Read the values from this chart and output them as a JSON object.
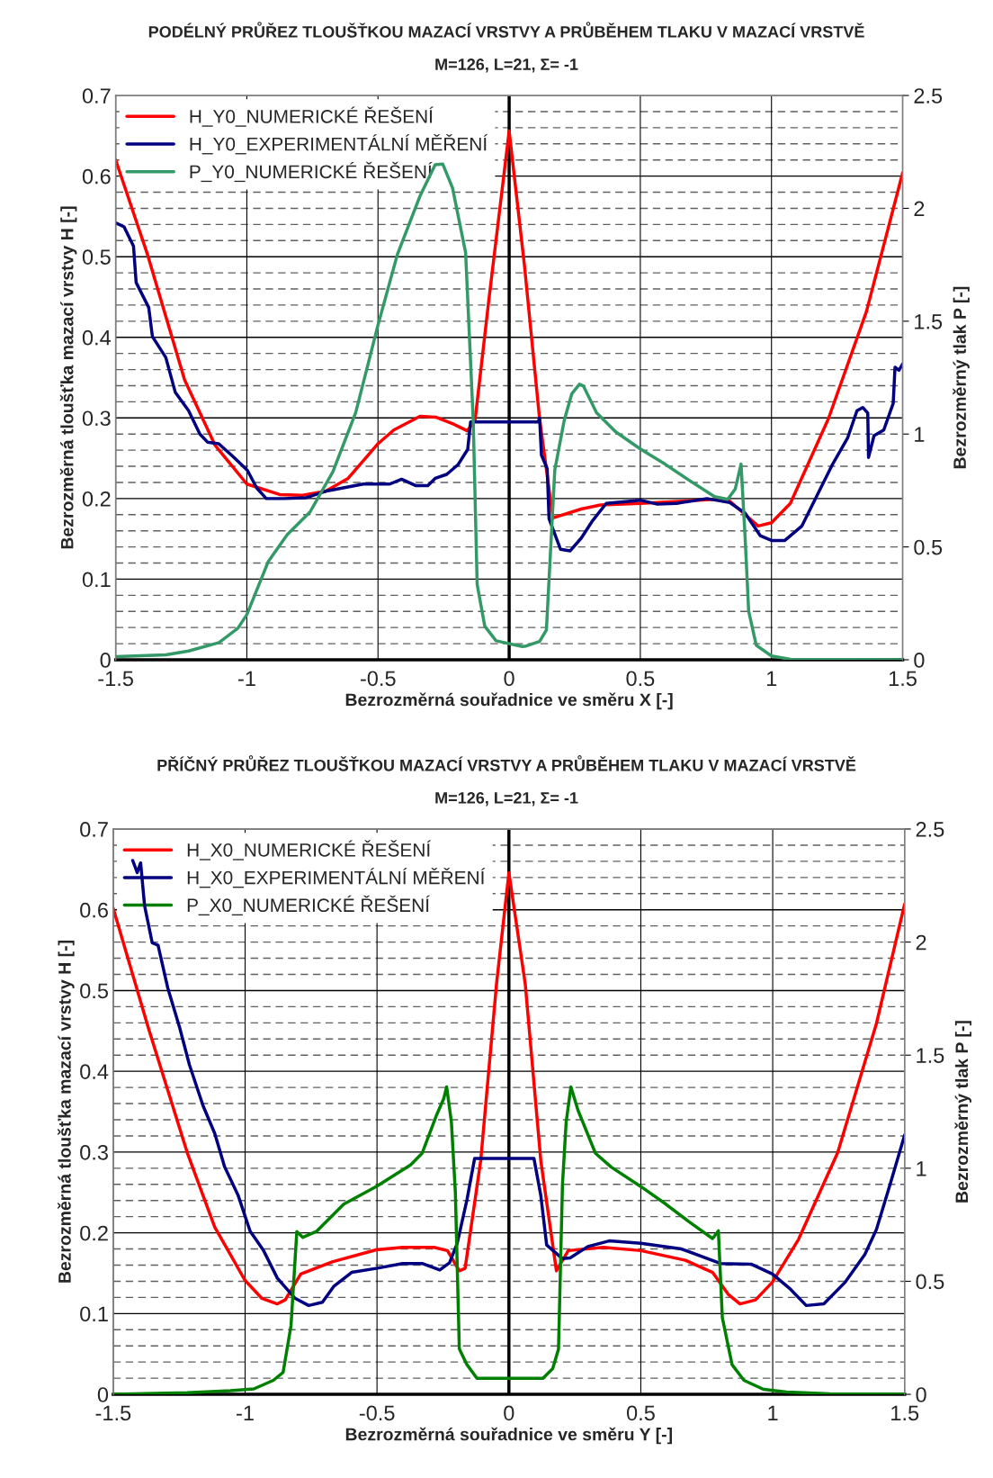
{
  "chart_data": [
    {
      "type": "line",
      "title": "PODÉLNÝ PRŮŘEZ TLOUŠŤKOU MAZACÍ VRSTVY A PRŮBĚHEM TLAKU V MAZACÍ VRSTVĚ",
      "subtitle": "M=126, L=21, Σ= -1",
      "xlabel": "Bezrozměrná souřadnice ve směru X [-]",
      "ylabel": "Bezrozměrná tloušťka mazací vrstvy H [-]",
      "y2label": "Bezrozměrný tlak P [-]",
      "xlim": [
        -1.5,
        1.5
      ],
      "xticks": [
        -1.5,
        -1,
        -0.5,
        0,
        0.5,
        1,
        1.5
      ],
      "ylim": [
        0,
        0.7
      ],
      "yticks": [
        0,
        {
          "value": 0.02,
          "label": null
        },
        {
          "value": 0.04,
          "label": null
        },
        {
          "value": 0.06,
          "label": null
        },
        {
          "value": 0.08,
          "label": null
        },
        0.1,
        {
          "value": 0.12,
          "label": null
        },
        {
          "value": 0.14,
          "label": null
        },
        {
          "value": 0.16,
          "label": null
        },
        {
          "value": 0.18,
          "label": null
        },
        0.2,
        {
          "value": 0.22,
          "label": null
        },
        {
          "value": 0.24,
          "label": null
        },
        {
          "value": 0.26,
          "label": null
        },
        {
          "value": 0.28,
          "label": null
        },
        0.3,
        {
          "value": 0.32,
          "label": null
        },
        {
          "value": 0.34,
          "label": null
        },
        {
          "value": 0.36,
          "label": null
        },
        {
          "value": 0.38,
          "label": null
        },
        0.4,
        {
          "value": 0.42,
          "label": null
        },
        {
          "value": 0.44,
          "label": null
        },
        {
          "value": 0.46,
          "label": null
        },
        {
          "value": 0.48,
          "label": null
        },
        0.5,
        {
          "value": 0.52,
          "label": null
        },
        {
          "value": 0.54,
          "label": null
        },
        {
          "value": 0.56,
          "label": null
        },
        {
          "value": 0.58,
          "label": null
        },
        0.6,
        {
          "value": 0.62,
          "label": null
        },
        {
          "value": 0.64,
          "label": null
        },
        {
          "value": 0.66,
          "label": null
        },
        {
          "value": 0.68,
          "label": null
        },
        0.7
      ],
      "y2lim": [
        0,
        2.5
      ],
      "y2ticks": [
        0,
        0.5,
        1,
        1.5,
        2,
        2.5
      ],
      "grid": true,
      "legend": "top left",
      "marker": "none",
      "line_style": "solid",
      "ref_lines": [
        {
          "axis": "x",
          "value": 0,
          "color": "#000000"
        }
      ],
      "series": [
        {
          "name": "H_Y0_NUMERICKÉ ŘEŠENÍ",
          "color": "#ff0000",
          "x": [
            -1.5,
            -1.38,
            -1.237,
            -1.121,
            -1.0,
            -0.875,
            -0.788,
            -0.7,
            -0.614,
            -0.5,
            -0.44,
            -0.34,
            -0.28,
            -0.21,
            -0.16,
            -0.13,
            -0.079,
            0,
            0.058,
            0.116,
            0.167,
            0.275,
            0.348,
            0.5,
            0.783,
            0.84,
            0.9,
            0.949,
            1.0,
            1.072,
            1.217,
            1.362,
            1.5
          ],
          "values": [
            0.62,
            0.504,
            0.347,
            0.266,
            0.218,
            0.205,
            0.204,
            0.209,
            0.225,
            0.268,
            0.285,
            0.302,
            0.301,
            0.292,
            0.284,
            0.297,
            0.442,
            0.656,
            0.49,
            0.299,
            0.176,
            0.187,
            0.192,
            0.194,
            0.199,
            0.197,
            0.18,
            0.166,
            0.17,
            0.194,
            0.299,
            0.432,
            0.604
          ]
        },
        {
          "name": "H_Y0_EXPERIMENTÁLNÍ MĚŘENÍ",
          "color": "#000080",
          "x": [
            -1.5,
            -1.468,
            -1.432,
            -1.422,
            -1.374,
            -1.36,
            -1.309,
            -1.273,
            -1.222,
            -1.179,
            -1.15,
            -1.107,
            -1.049,
            -0.998,
            -0.962,
            -0.926,
            -0.86,
            -0.774,
            -0.7,
            -0.556,
            -0.455,
            -0.41,
            -0.355,
            -0.31,
            -0.282,
            -0.238,
            -0.195,
            -0.158,
            -0.147,
            0.11,
            0.116,
            0.123,
            0.145,
            0.152,
            0.196,
            0.232,
            0.275,
            0.319,
            0.37,
            0.5,
            0.565,
            0.638,
            0.754,
            0.841,
            0.899,
            0.957,
            1.0,
            1.051,
            1.116,
            1.174,
            1.232,
            1.29,
            1.326,
            1.348,
            1.367,
            1.37,
            1.391,
            1.428,
            1.464,
            1.471,
            1.486,
            1.5
          ],
          "values": [
            0.542,
            0.537,
            0.513,
            0.468,
            0.437,
            0.401,
            0.375,
            0.332,
            0.309,
            0.28,
            0.27,
            0.268,
            0.251,
            0.235,
            0.213,
            0.2,
            0.2,
            0.201,
            0.209,
            0.218,
            0.218,
            0.224,
            0.216,
            0.216,
            0.225,
            0.23,
            0.242,
            0.261,
            0.295,
            0.295,
            0.3,
            0.254,
            0.237,
            0.175,
            0.137,
            0.135,
            0.151,
            0.173,
            0.194,
            0.198,
            0.193,
            0.194,
            0.2,
            0.195,
            0.182,
            0.154,
            0.148,
            0.148,
            0.166,
            0.204,
            0.242,
            0.275,
            0.309,
            0.313,
            0.306,
            0.251,
            0.278,
            0.285,
            0.318,
            0.363,
            0.359,
            0.367
          ]
        },
        {
          "name": "P_Y0_NUMERICKÉ ŘEŠENÍ",
          "color": "#339966",
          "axis": "y2",
          "x": [
            -1.5,
            -1.309,
            -1.222,
            -1.106,
            -1.034,
            -1.0,
            -0.918,
            -0.846,
            -0.759,
            -0.672,
            -0.585,
            -0.5,
            -0.426,
            -0.339,
            -0.282,
            -0.253,
            -0.216,
            -0.166,
            -0.137,
            -0.122,
            -0.093,
            -0.05,
            0.05,
            0.065,
            0.116,
            0.142,
            0.174,
            0.21,
            0.239,
            0.268,
            0.283,
            0.333,
            0.406,
            0.5,
            0.594,
            0.681,
            0.783,
            0.833,
            0.862,
            0.884,
            0.899,
            0.913,
            0.942,
            1.0,
            1.072,
            1.5
          ],
          "values": [
            0.014,
            0.022,
            0.039,
            0.076,
            0.14,
            0.2,
            0.436,
            0.554,
            0.655,
            0.833,
            1.095,
            1.483,
            1.796,
            2.057,
            2.193,
            2.196,
            2.091,
            1.804,
            1.061,
            0.334,
            0.149,
            0.084,
            0.059,
            0.061,
            0.081,
            0.132,
            0.841,
            1.061,
            1.179,
            1.221,
            1.213,
            1.095,
            1.01,
            0.934,
            0.867,
            0.799,
            0.723,
            0.711,
            0.757,
            0.867,
            0.554,
            0.216,
            0.064,
            0.017,
            0.002,
            0
          ]
        }
      ]
    },
    {
      "type": "line",
      "title": "PŘÍČNÝ PRŮŘEZ TLOUŠŤKOU MAZACÍ VRSTVY A PRŮBĚHEM TLAKU V MAZACÍ VRSTVĚ",
      "subtitle": "M=126, L=21, Σ= -1",
      "xlabel": "Bezrozměrná souřadnice ve směru Y [-]",
      "ylabel": "Bezrozměrná tloušťka mazací vrstvy H [-]",
      "y2label": "Bezrozměrný tlak P [-]",
      "xlim": [
        -1.5,
        1.5
      ],
      "xticks": [
        -1.5,
        -1,
        -0.5,
        0,
        0.5,
        1,
        1.5
      ],
      "ylim": [
        0,
        0.7
      ],
      "yticks": [
        0,
        {
          "value": 0.02,
          "label": null
        },
        {
          "value": 0.04,
          "label": null
        },
        {
          "value": 0.06,
          "label": null
        },
        {
          "value": 0.08,
          "label": null
        },
        0.1,
        {
          "value": 0.12,
          "label": null
        },
        {
          "value": 0.14,
          "label": null
        },
        {
          "value": 0.16,
          "label": null
        },
        {
          "value": 0.18,
          "label": null
        },
        0.2,
        {
          "value": 0.22,
          "label": null
        },
        {
          "value": 0.24,
          "label": null
        },
        {
          "value": 0.26,
          "label": null
        },
        {
          "value": 0.28,
          "label": null
        },
        0.3,
        {
          "value": 0.32,
          "label": null
        },
        {
          "value": 0.34,
          "label": null
        },
        {
          "value": 0.36,
          "label": null
        },
        {
          "value": 0.38,
          "label": null
        },
        0.4,
        {
          "value": 0.42,
          "label": null
        },
        {
          "value": 0.44,
          "label": null
        },
        {
          "value": 0.46,
          "label": null
        },
        {
          "value": 0.48,
          "label": null
        },
        0.5,
        {
          "value": 0.52,
          "label": null
        },
        {
          "value": 0.54,
          "label": null
        },
        {
          "value": 0.56,
          "label": null
        },
        {
          "value": 0.58,
          "label": null
        },
        0.6,
        {
          "value": 0.62,
          "label": null
        },
        {
          "value": 0.64,
          "label": null
        },
        {
          "value": 0.66,
          "label": null
        },
        {
          "value": 0.68,
          "label": null
        },
        0.7
      ],
      "y2lim": [
        0,
        2.5
      ],
      "y2ticks": [
        0,
        0.5,
        1,
        1.5,
        2,
        2.5
      ],
      "grid": true,
      "legend": "top left",
      "marker": "none",
      "line_style": "solid",
      "ref_lines": [
        {
          "axis": "x",
          "value": 0,
          "color": "#000000"
        }
      ],
      "series": [
        {
          "name": "H_X0_NUMERICKÉ ŘEŠENÍ",
          "color": "#ff0000",
          "x": [
            -1.5,
            -1.367,
            -1.219,
            -1.115,
            -1.0,
            -0.937,
            -0.878,
            -0.848,
            -0.789,
            -0.67,
            -0.503,
            -0.403,
            -0.284,
            -0.233,
            -0.188,
            -0.166,
            -0.107,
            -0.047,
            0,
            0.062,
            0.121,
            0.18,
            0.225,
            0.358,
            0.5,
            0.669,
            0.772,
            0.831,
            0.876,
            0.935,
            0.999,
            1.098,
            1.246,
            1.393,
            1.5
          ],
          "values": [
            0.602,
            0.454,
            0.299,
            0.207,
            0.141,
            0.119,
            0.112,
            0.117,
            0.149,
            0.164,
            0.179,
            0.182,
            0.182,
            0.178,
            0.153,
            0.156,
            0.289,
            0.508,
            0.646,
            0.508,
            0.289,
            0.153,
            0.178,
            0.182,
            0.178,
            0.166,
            0.151,
            0.124,
            0.112,
            0.117,
            0.139,
            0.192,
            0.299,
            0.459,
            0.607
          ]
        },
        {
          "name": "H_X0_EXPERIMENTÁLNÍ MĚŘENÍ",
          "color": "#000080",
          "x": [
            -1.426,
            -1.409,
            -1.396,
            -1.381,
            -1.352,
            -1.33,
            -1.293,
            -1.248,
            -1.211,
            -1.159,
            -1.115,
            -1.078,
            -1.026,
            -0.981,
            -0.93,
            -0.878,
            -0.811,
            -0.759,
            -0.707,
            -0.663,
            -0.596,
            -0.503,
            -0.403,
            -0.329,
            -0.262,
            -0.225,
            -0.196,
            -0.159,
            -0.13,
            0.095,
            0.121,
            0.143,
            0.203,
            0.232,
            0.299,
            0.38,
            0.5,
            0.654,
            0.802,
            0.92,
            0.999,
            1.068,
            1.127,
            1.194,
            1.275,
            1.349,
            1.393,
            1.445,
            1.5
          ],
          "values": [
            0.661,
            0.646,
            0.658,
            0.605,
            0.559,
            0.556,
            0.503,
            0.454,
            0.408,
            0.357,
            0.323,
            0.282,
            0.246,
            0.202,
            0.178,
            0.144,
            0.119,
            0.11,
            0.114,
            0.134,
            0.151,
            0.156,
            0.162,
            0.162,
            0.154,
            0.163,
            0.187,
            0.241,
            0.292,
            0.292,
            0.246,
            0.185,
            0.168,
            0.169,
            0.183,
            0.19,
            0.187,
            0.18,
            0.162,
            0.161,
            0.149,
            0.13,
            0.11,
            0.112,
            0.139,
            0.173,
            0.204,
            0.26,
            0.321
          ]
        },
        {
          "name": "P_X0_NUMERICKÉ ŘEŠENÍ",
          "color": "#008000",
          "axis": "y2",
          "x": [
            -1.5,
            -1.219,
            -1.056,
            -0.967,
            -0.893,
            -0.856,
            -0.826,
            -0.804,
            -0.781,
            -0.73,
            -0.626,
            -0.503,
            -0.373,
            -0.329,
            -0.276,
            -0.247,
            -0.236,
            -0.218,
            -0.203,
            -0.188,
            -0.159,
            -0.121,
            0,
            0.129,
            0.166,
            0.188,
            0.203,
            0.217,
            0.235,
            0.262,
            0.328,
            0.388,
            0.5,
            0.595,
            0.683,
            0.772,
            0.794,
            0.809,
            0.846,
            0.891,
            0.965,
            1.053,
            1.216,
            1.5
          ],
          "values": [
            0,
            0.007,
            0.016,
            0.024,
            0.062,
            0.097,
            0.304,
            0.72,
            0.694,
            0.72,
            0.841,
            0.919,
            1.014,
            1.066,
            1.23,
            1.308,
            1.36,
            1.204,
            0.893,
            0.201,
            0.131,
            0.071,
            0.071,
            0.071,
            0.114,
            0.2,
            0.927,
            1.204,
            1.36,
            1.256,
            1.066,
            1.005,
            0.919,
            0.841,
            0.763,
            0.689,
            0.723,
            0.339,
            0.131,
            0.062,
            0.022,
            0.01,
            0.002,
            0
          ]
        }
      ]
    }
  ]
}
